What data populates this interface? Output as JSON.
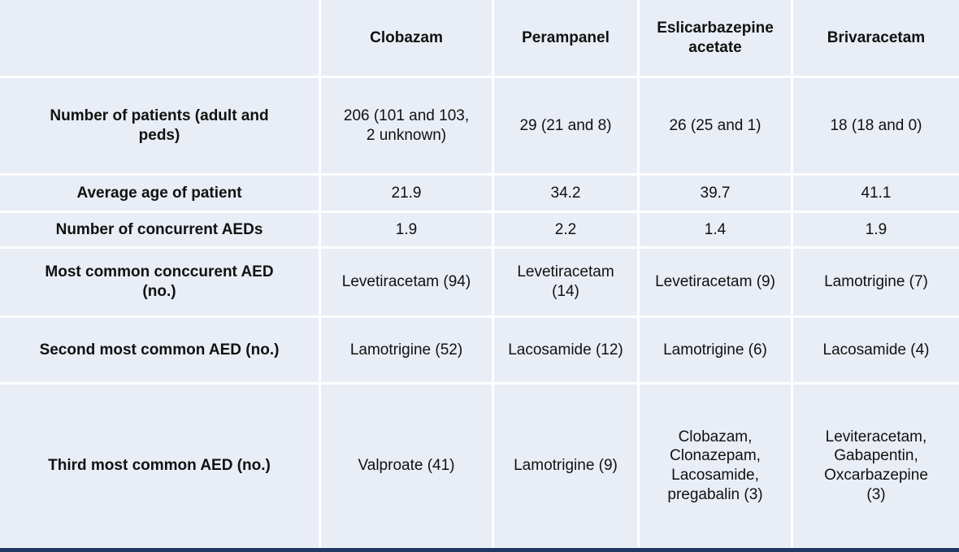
{
  "table": {
    "header": {
      "corner": "",
      "columns": [
        "Clobazam",
        "Perampanel",
        "Eslicarbazepine\nacetate",
        "Brivaracetam"
      ]
    },
    "rows": [
      {
        "label": "Number of patients (adult and\npeds)",
        "cells": [
          "206 (101 and 103,\n2 unknown)",
          "29 (21 and 8)",
          "26 (25 and 1)",
          "18 (18 and 0)"
        ]
      },
      {
        "label": "Average age of patient",
        "cells": [
          "21.9",
          "34.2",
          "39.7",
          "41.1"
        ]
      },
      {
        "label": "Number of concurrent AEDs",
        "cells": [
          "1.9",
          "2.2",
          "1.4",
          "1.9"
        ]
      },
      {
        "label": "Most common conccurent AED\n(no.)",
        "cells": [
          "Levetiracetam (94)",
          "Levetiracetam\n(14)",
          "Levetiracetam (9)",
          "Lamotrigine (7)"
        ]
      },
      {
        "label": "Second most common AED (no.)",
        "cells": [
          "Lamotrigine (52)",
          "Lacosamide (12)",
          "Lamotrigine (6)",
          "Lacosamide (4)"
        ]
      },
      {
        "label": "Third most common AED (no.)",
        "cells": [
          "Valproate (41)",
          "Lamotrigine (9)",
          "Clobazam,\nClonazepam,\nLacosamide,\npregabalin (3)",
          "Leviteracetam,\nGabapentin,\nOxcarbazepine\n(3)"
        ]
      }
    ]
  },
  "colors": {
    "cell_background": "#e9edf5",
    "gridline": "#ffffff",
    "bottom_accent_bar": "#1f3864",
    "text": "#111111"
  }
}
